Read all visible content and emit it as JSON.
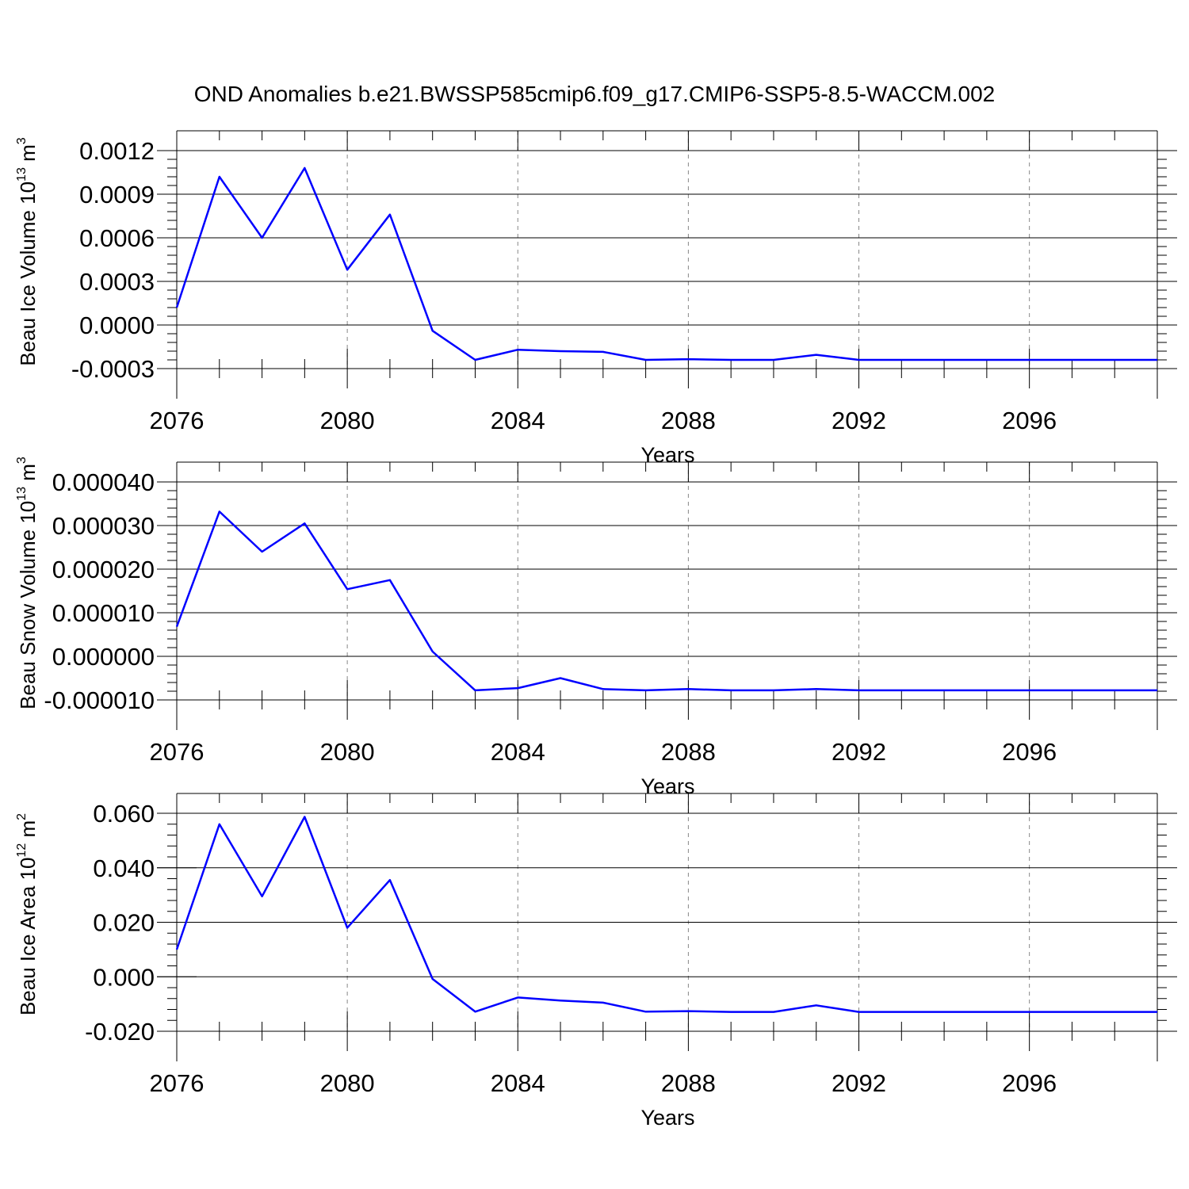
{
  "title": "OND Anomalies b.e21.BWSSP585cmip6.f09_g17.CMIP6-SSP5-8.5-WACCM.002",
  "colors": {
    "series": "#0000ff",
    "axis": "#000000",
    "grid": "#888888",
    "background": "#ffffff"
  },
  "chart_data": [
    {
      "type": "line",
      "name": "ice-volume",
      "ylabel": {
        "main": "Beau Ice Volume 10",
        "exp": "13",
        "unit": " m",
        "unit_exp": "3"
      },
      "xlabel": "Years",
      "xlim": [
        2076,
        2099
      ],
      "xticks": [
        2076,
        2080,
        2084,
        2088,
        2092,
        2096
      ],
      "xtick_labels": [
        "2076",
        "2080",
        "2084",
        "2088",
        "2092",
        "2096"
      ],
      "ylim": [
        -0.0003,
        0.0012
      ],
      "yticks": [
        -0.0003,
        0.0,
        0.0003,
        0.0006,
        0.0009,
        0.0012
      ],
      "ytick_labels": [
        "-0.0003",
        "0.0000",
        "0.0003",
        "0.0006",
        "0.0009",
        "0.0012"
      ],
      "y_minor_step": 6e-05,
      "x": [
        2076,
        2077,
        2078,
        2079,
        2080,
        2081,
        2082,
        2083,
        2084,
        2085,
        2086,
        2087,
        2088,
        2089,
        2090,
        2091,
        2092,
        2093,
        2094,
        2095,
        2096,
        2097,
        2098,
        2099
      ],
      "values": [
        0.00012,
        0.00102,
        0.0006,
        0.00108,
        0.00038,
        0.00076,
        -4e-05,
        -0.00024,
        -0.00017,
        -0.00018,
        -0.000185,
        -0.00024,
        -0.000235,
        -0.00024,
        -0.00024,
        -0.000205,
        -0.00024,
        -0.00024,
        -0.00024,
        -0.00024,
        -0.00024,
        -0.00024,
        -0.00024,
        -0.00024
      ]
    },
    {
      "type": "line",
      "name": "snow-volume",
      "ylabel": {
        "main": "Beau Snow Volume 10",
        "exp": "13",
        "unit": " m",
        "unit_exp": "3"
      },
      "xlabel": "Years",
      "xlim": [
        2076,
        2099
      ],
      "xticks": [
        2076,
        2080,
        2084,
        2088,
        2092,
        2096
      ],
      "xtick_labels": [
        "2076",
        "2080",
        "2084",
        "2088",
        "2092",
        "2096"
      ],
      "ylim": [
        -1e-05,
        4e-05
      ],
      "yticks": [
        -1e-05,
        0.0,
        1e-05,
        2e-05,
        3e-05,
        4e-05
      ],
      "ytick_labels": [
        "-0.000010",
        "0.000000",
        "0.000010",
        "0.000020",
        "0.000030",
        "0.000040"
      ],
      "y_minor_step": 2e-06,
      "x": [
        2076,
        2077,
        2078,
        2079,
        2080,
        2081,
        2082,
        2083,
        2084,
        2085,
        2086,
        2087,
        2088,
        2089,
        2090,
        2091,
        2092,
        2093,
        2094,
        2095,
        2096,
        2097,
        2098,
        2099
      ],
      "values": [
        6.8e-06,
        3.32e-05,
        2.4e-05,
        3.05e-05,
        1.54e-05,
        1.75e-05,
        1.1e-06,
        -7.8e-06,
        -7.3e-06,
        -5e-06,
        -7.5e-06,
        -7.8e-06,
        -7.5e-06,
        -7.8e-06,
        -7.8e-06,
        -7.5e-06,
        -7.8e-06,
        -7.8e-06,
        -7.8e-06,
        -7.8e-06,
        -7.8e-06,
        -7.8e-06,
        -7.8e-06,
        -7.8e-06
      ]
    },
    {
      "type": "line",
      "name": "ice-area",
      "ylabel": {
        "main": "Beau Ice Area 10",
        "exp": "12",
        "unit": " m",
        "unit_exp": "2"
      },
      "xlabel": "Years",
      "xlim": [
        2076,
        2099
      ],
      "xticks": [
        2076,
        2080,
        2084,
        2088,
        2092,
        2096
      ],
      "xtick_labels": [
        "2076",
        "2080",
        "2084",
        "2088",
        "2092",
        "2096"
      ],
      "ylim": [
        -0.02,
        0.06
      ],
      "yticks": [
        -0.02,
        0.0,
        0.02,
        0.04,
        0.06
      ],
      "ytick_labels": [
        "-0.020",
        "0.000",
        "0.020",
        "0.040",
        "0.060"
      ],
      "y_minor_step": 0.004,
      "x": [
        2076,
        2077,
        2078,
        2079,
        2080,
        2081,
        2082,
        2083,
        2084,
        2085,
        2086,
        2087,
        2088,
        2089,
        2090,
        2091,
        2092,
        2093,
        2094,
        2095,
        2096,
        2097,
        2098,
        2099
      ],
      "values": [
        0.01,
        0.056,
        0.0295,
        0.0587,
        0.018,
        0.0355,
        -0.0008,
        -0.0128,
        -0.0076,
        -0.0087,
        -0.0095,
        -0.0128,
        -0.0126,
        -0.0129,
        -0.0129,
        -0.0105,
        -0.0129,
        -0.0129,
        -0.0129,
        -0.0129,
        -0.0129,
        -0.0129,
        -0.0129,
        -0.0129
      ]
    }
  ]
}
